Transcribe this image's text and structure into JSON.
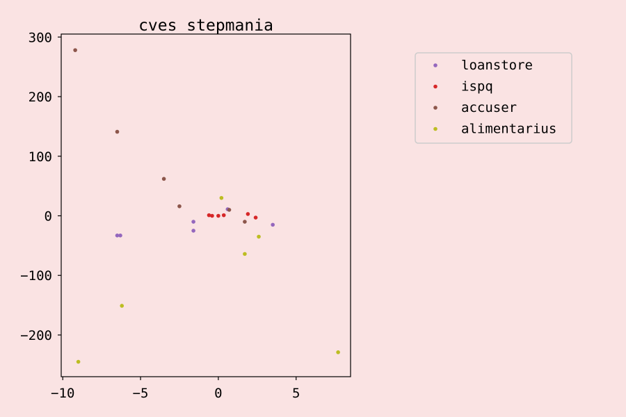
{
  "chart_data": {
    "type": "scatter",
    "title": "cves stepmania",
    "xlabel": "",
    "ylabel": "",
    "xlim": [
      -10.1,
      8.5
    ],
    "ylim": [
      -270,
      305
    ],
    "xticks": [
      -10,
      -5,
      0,
      5
    ],
    "xtick_labels": [
      "−10",
      "−5",
      "0",
      "5"
    ],
    "yticks": [
      300,
      200,
      100,
      0,
      -100,
      -200
    ],
    "ytick_labels": [
      "300",
      "200",
      "100",
      "0",
      "−100",
      "−200"
    ],
    "grid": false,
    "legend_position": "right",
    "series": [
      {
        "name": "loanstore",
        "color": "#9467bd",
        "points": [
          [
            -6.5,
            -33
          ],
          [
            -6.3,
            -33
          ],
          [
            -1.6,
            -10
          ],
          [
            -1.6,
            -25
          ],
          [
            0.6,
            11
          ],
          [
            3.5,
            -15
          ]
        ]
      },
      {
        "name": "ispq",
        "color": "#d62728",
        "points": [
          [
            -0.6,
            1
          ],
          [
            -0.4,
            0
          ],
          [
            0.0,
            0
          ],
          [
            0.35,
            1
          ],
          [
            1.9,
            3
          ],
          [
            2.4,
            -3
          ]
        ]
      },
      {
        "name": "accuser",
        "color": "#8c564b",
        "points": [
          [
            -9.2,
            278
          ],
          [
            -6.5,
            141
          ],
          [
            -3.5,
            62
          ],
          [
            -2.5,
            16
          ],
          [
            0.7,
            10
          ],
          [
            1.7,
            -10
          ]
        ]
      },
      {
        "name": "alimentarius",
        "color": "#bcbd22",
        "points": [
          [
            -9.0,
            -245
          ],
          [
            -6.2,
            -151
          ],
          [
            0.2,
            30
          ],
          [
            1.7,
            -64
          ],
          [
            2.6,
            -35
          ],
          [
            7.7,
            -229
          ]
        ]
      }
    ]
  }
}
